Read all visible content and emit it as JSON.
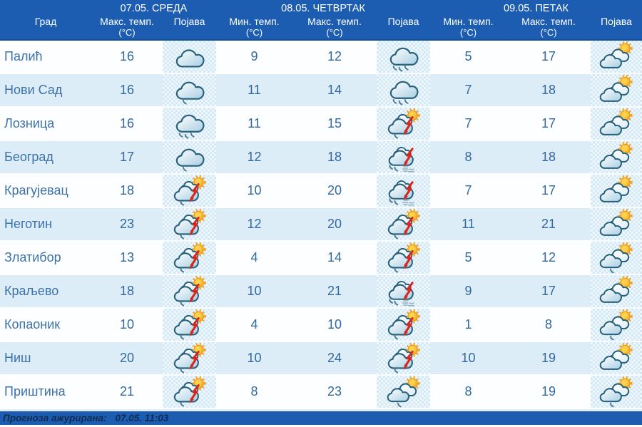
{
  "header": {
    "city_label": "Град",
    "days": [
      {
        "title": "07.05. СРЕДА",
        "columns": [
          {
            "label": "Макс. темп.",
            "unit": "(°C)"
          },
          {
            "label": "Појава",
            "unit": ""
          }
        ]
      },
      {
        "title": "08.05. ЧЕТВРТАК",
        "columns": [
          {
            "label": "Мин. темп.",
            "unit": "(°C)"
          },
          {
            "label": "Макс. темп.",
            "unit": "(°C)"
          },
          {
            "label": "Појава",
            "unit": ""
          }
        ]
      },
      {
        "title": "09.05. ПЕТАК",
        "columns": [
          {
            "label": "Мин. темп.",
            "unit": "(°C)"
          },
          {
            "label": "Макс. темп.",
            "unit": "(°C)"
          },
          {
            "label": "Појава",
            "unit": ""
          }
        ]
      }
    ]
  },
  "rows": [
    {
      "city": "Палић",
      "d1": {
        "max": "16",
        "icon": "cloudy"
      },
      "d2": {
        "min": "9",
        "max": "12",
        "icon": "rain"
      },
      "d3": {
        "min": "5",
        "max": "17",
        "icon": "partly-cloudy"
      }
    },
    {
      "city": "Нови Сад",
      "d1": {
        "max": "16",
        "icon": "light-rain"
      },
      "d2": {
        "min": "11",
        "max": "14",
        "icon": "rain"
      },
      "d3": {
        "min": "7",
        "max": "18",
        "icon": "partly-cloudy"
      }
    },
    {
      "city": "Лозница",
      "d1": {
        "max": "16",
        "icon": "rain"
      },
      "d2": {
        "min": "11",
        "max": "15",
        "icon": "sun-storm"
      },
      "d3": {
        "min": "7",
        "max": "17",
        "icon": "partly-cloudy"
      }
    },
    {
      "city": "Београд",
      "d1": {
        "max": "17",
        "icon": "light-rain"
      },
      "d2": {
        "min": "12",
        "max": "18",
        "icon": "storm-heavy-rain"
      },
      "d3": {
        "min": "8",
        "max": "18",
        "icon": "partly-cloudy"
      }
    },
    {
      "city": "Крагујевац",
      "d1": {
        "max": "18",
        "icon": "sun-storm"
      },
      "d2": {
        "min": "10",
        "max": "20",
        "icon": "storm-heavy-rain"
      },
      "d3": {
        "min": "7",
        "max": "17",
        "icon": "partly-cloudy"
      }
    },
    {
      "city": "Неготин",
      "d1": {
        "max": "23",
        "icon": "sun-storm"
      },
      "d2": {
        "min": "12",
        "max": "20",
        "icon": "sun-storm"
      },
      "d3": {
        "min": "11",
        "max": "21",
        "icon": "partly-cloudy"
      }
    },
    {
      "city": "Златибор",
      "d1": {
        "max": "13",
        "icon": "sun-storm"
      },
      "d2": {
        "min": "4",
        "max": "14",
        "icon": "sun-storm"
      },
      "d3": {
        "min": "5",
        "max": "12",
        "icon": "partly-cloudy-drizzle"
      }
    },
    {
      "city": "Краљево",
      "d1": {
        "max": "18",
        "icon": "sun-storm"
      },
      "d2": {
        "min": "10",
        "max": "21",
        "icon": "storm-heavy-rain"
      },
      "d3": {
        "min": "9",
        "max": "17",
        "icon": "partly-cloudy"
      }
    },
    {
      "city": "Копаоник",
      "d1": {
        "max": "10",
        "icon": "sun-storm"
      },
      "d2": {
        "min": "4",
        "max": "10",
        "icon": "sun-storm"
      },
      "d3": {
        "min": "1",
        "max": "8",
        "icon": "partly-cloudy-drizzle"
      }
    },
    {
      "city": "Ниш",
      "d1": {
        "max": "20",
        "icon": "sun-storm"
      },
      "d2": {
        "min": "10",
        "max": "24",
        "icon": "sun-storm"
      },
      "d3": {
        "min": "10",
        "max": "19",
        "icon": "partly-cloudy"
      }
    },
    {
      "city": "Приштина",
      "d1": {
        "max": "21",
        "icon": "sun-storm"
      },
      "d2": {
        "min": "8",
        "max": "23",
        "icon": "partly-cloudy-drizzle"
      },
      "d3": {
        "min": "8",
        "max": "19",
        "icon": "partly-cloudy-drizzle"
      }
    }
  ],
  "footer": {
    "label": "Прогноза ажурирана:",
    "value": "07.05. 11:03"
  },
  "colors": {
    "header_bg": "#1c5db1",
    "footer_bg": "#1c5db1",
    "row_alt_bg": "#ddedf7",
    "city_text": "#3c72a8",
    "temp_text": "#33689f",
    "footer_text": "#0d2a52",
    "bolt_red": "#d7261d",
    "sun_orange": "#f5a31a",
    "cloud_outline": "#26607b"
  }
}
